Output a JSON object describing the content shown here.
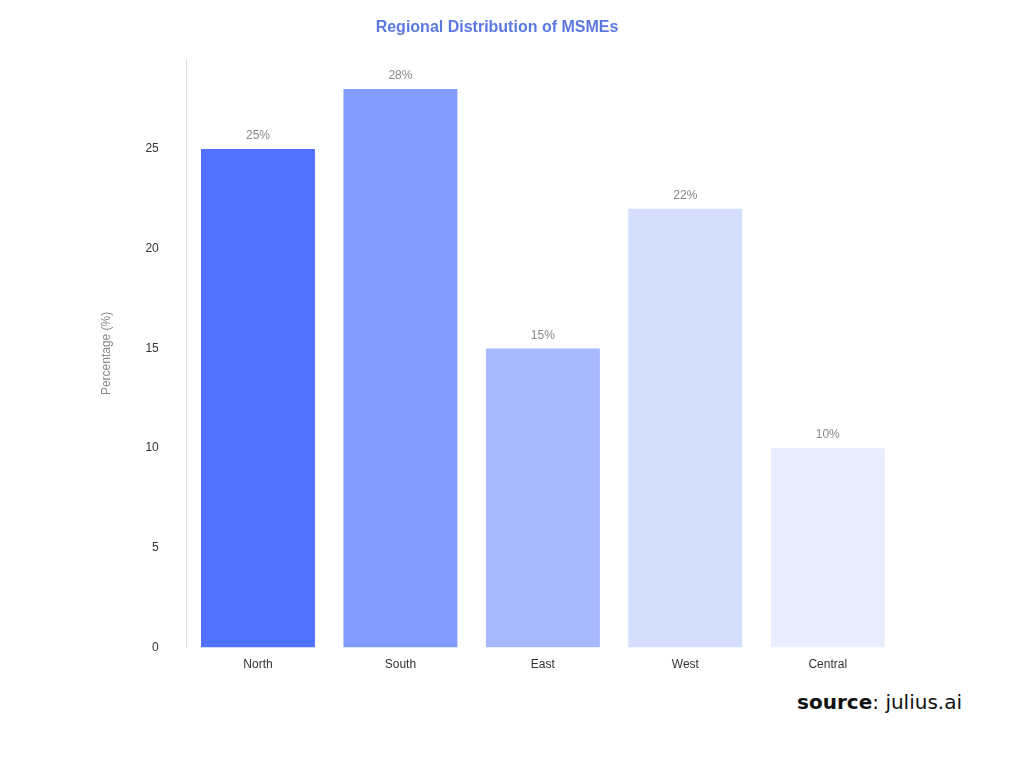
{
  "chart_data": {
    "type": "bar",
    "title": "Regional Distribution of MSMEs",
    "y_label": "Percentage (%)",
    "categories": [
      "North",
      "South",
      "East",
      "West",
      "Central"
    ],
    "values": [
      25,
      28,
      15,
      22,
      10
    ],
    "value_labels": [
      "25%",
      "28%",
      "15%",
      "22%",
      "10%"
    ],
    "colors": [
      "#5271ff",
      "#819cff",
      "#a7b8ff",
      "#d3deff",
      "#e8eeff"
    ],
    "ylim": [
      0,
      29.5
    ],
    "yticks": [
      0,
      5,
      10,
      15,
      20,
      25
    ],
    "grid": false,
    "data_labels": true,
    "annotations": [
      "source: julius.ai"
    ]
  }
}
